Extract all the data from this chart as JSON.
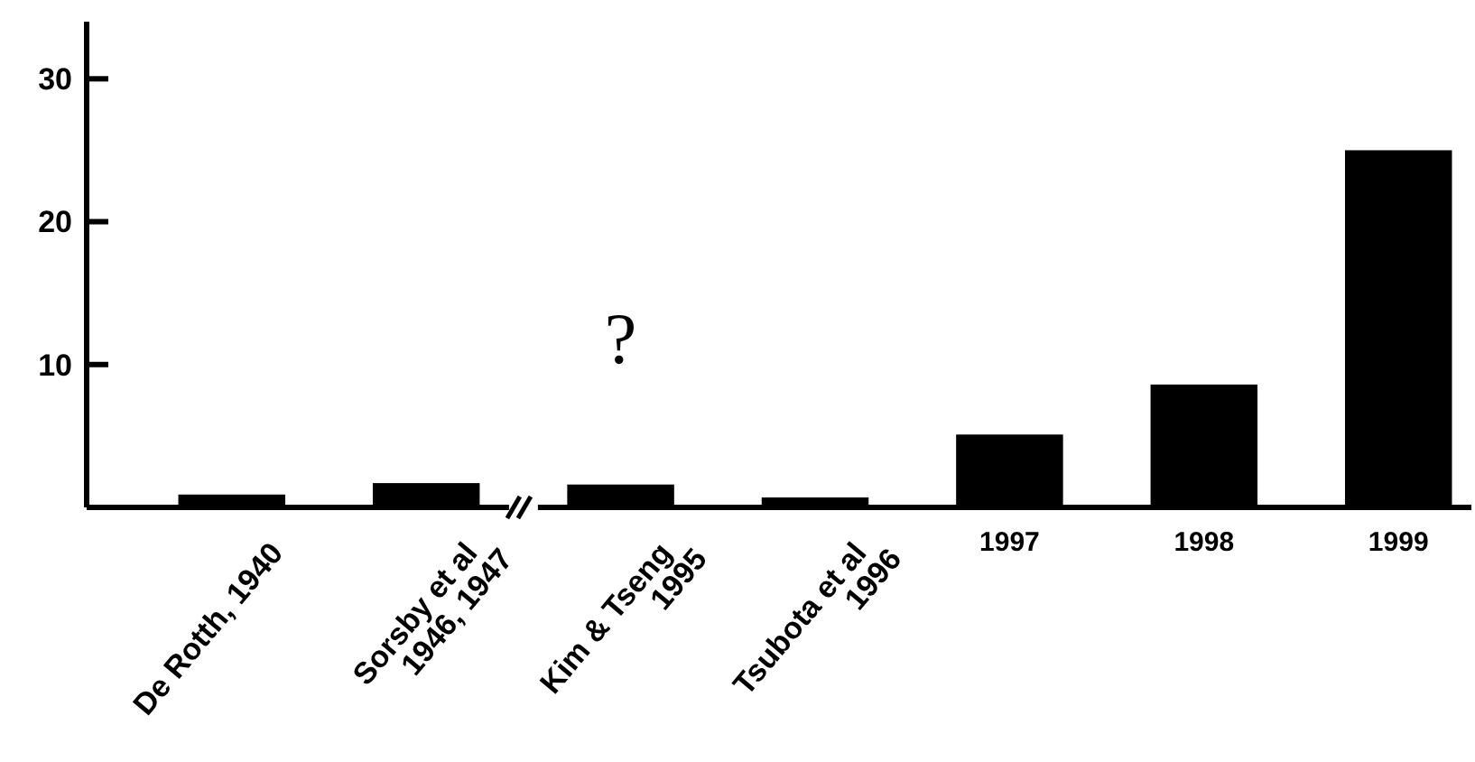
{
  "chart_data": {
    "type": "bar",
    "categories": [
      "De Rotth, 1940",
      "Sorsby et al\n1946, 1947",
      "Kim & Tseng\n1995",
      "Tsubota et al\n1996",
      "1997",
      "1998",
      "1999"
    ],
    "values": [
      0.9,
      1.7,
      1.6,
      0.7,
      5.1,
      8.6,
      25
    ],
    "color": "#000000",
    "ylim": [
      0,
      34
    ],
    "yticks": [
      10,
      20,
      30
    ],
    "grid": false,
    "annotations": [
      "?"
    ]
  }
}
